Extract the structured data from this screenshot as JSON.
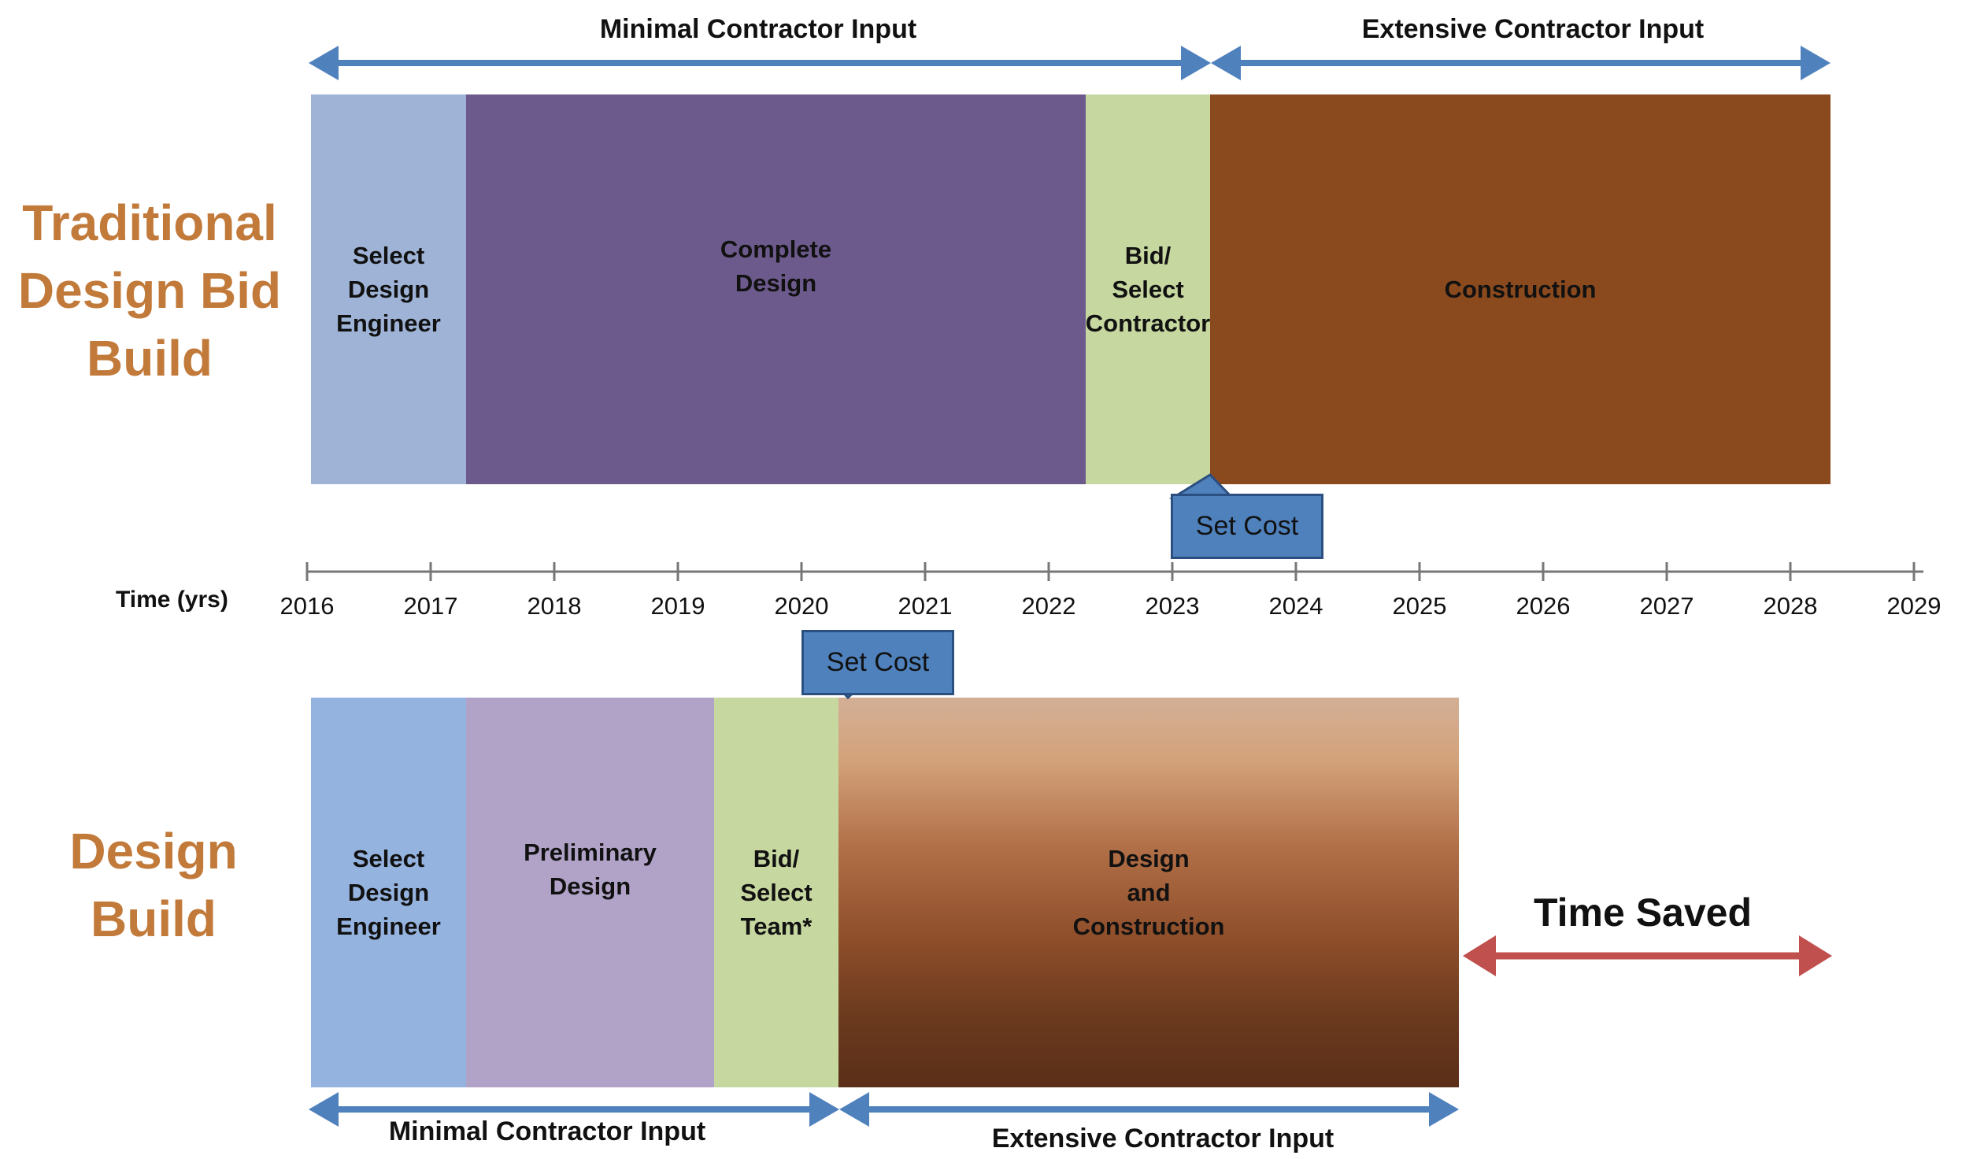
{
  "traditional": {
    "title": [
      "Traditional",
      "Design Bid",
      "Build"
    ],
    "phases": [
      {
        "lines": [
          "Select",
          "Design",
          "Engineer"
        ],
        "color": "#9eb3d6"
      },
      {
        "lines": [
          "Complete",
          "Design"
        ],
        "color": "#6d5a8c"
      },
      {
        "lines": [
          "Bid/",
          "Select",
          "Contractor"
        ],
        "color": "#c6d7a0"
      },
      {
        "lines": [
          "Construction"
        ],
        "color": "#8b4a1e"
      }
    ],
    "top_arrows": {
      "minimal": "Minimal Contractor Input",
      "extensive": "Extensive Contractor Input"
    },
    "set_cost": "Set Cost"
  },
  "timeline": {
    "label": "Time (yrs)",
    "years": [
      "2016",
      "2017",
      "2018",
      "2019",
      "2020",
      "2021",
      "2022",
      "2023",
      "2024",
      "2025",
      "2026",
      "2027",
      "2028",
      "2029"
    ]
  },
  "design_build": {
    "title": [
      "Design",
      "Build"
    ],
    "phases": [
      {
        "lines": [
          "Select",
          "Design",
          "Engineer"
        ],
        "color": "#95b3df"
      },
      {
        "lines": [
          "Preliminary",
          "Design"
        ],
        "color": "#b1a3c7"
      },
      {
        "lines": [
          "Bid/",
          "Select",
          "Team*"
        ],
        "color": "#c6d7a0"
      },
      {
        "lines": [
          "Design",
          "and",
          "Construction"
        ],
        "color": "gradient"
      }
    ],
    "bottom_arrows": {
      "minimal": "Minimal Contractor Input",
      "extensive": "Extensive Contractor Input"
    },
    "set_cost": "Set Cost",
    "time_saved": "Time Saved"
  },
  "colors": {
    "arrow_blue": "#4f81bd",
    "arrow_red": "#c0504d",
    "title_orange": "#c27a3a"
  }
}
